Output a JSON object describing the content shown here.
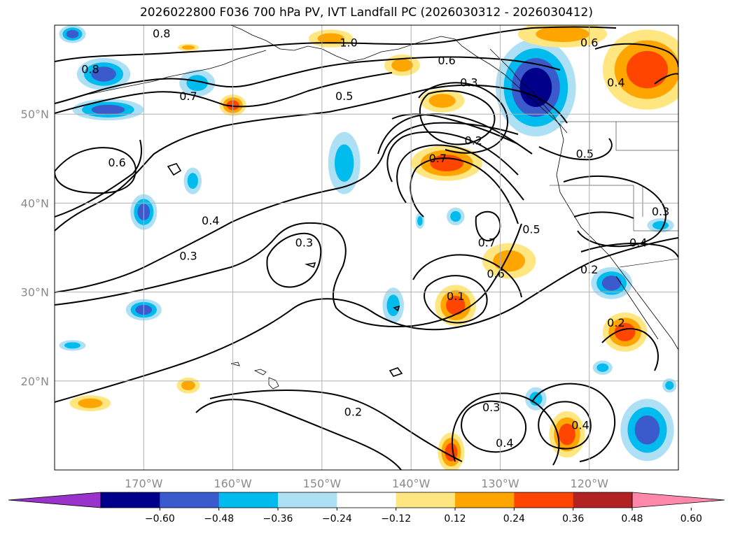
{
  "title": "2026022800 F036 700 hPa PV, IVT Landfall PC (2026030312 - 2026030412)",
  "colors": {
    "contour": "#000000",
    "grid": "#b0b0b0",
    "coast": "#000000",
    "axis_label": "#8a8a8a"
  },
  "axes": {
    "lat_labels": [
      {
        "lat": 50,
        "text": "50°N"
      },
      {
        "lat": 40,
        "text": "40°N"
      },
      {
        "lat": 30,
        "text": "30°N"
      },
      {
        "lat": 20,
        "text": "20°N"
      }
    ],
    "lon_labels": [
      {
        "lon": -170,
        "text": "170°W"
      },
      {
        "lon": -160,
        "text": "160°W"
      },
      {
        "lon": -150,
        "text": "150°W"
      },
      {
        "lon": -140,
        "text": "140°W"
      },
      {
        "lon": -130,
        "text": "130°W"
      },
      {
        "lon": -120,
        "text": "120°W"
      }
    ],
    "lat_range": [
      10,
      60
    ],
    "lon_range": [
      -180,
      -110
    ]
  },
  "contour_labels": [
    {
      "text": "0.8",
      "lon": -168,
      "lat": 59
    },
    {
      "text": "1.0",
      "lon": -147,
      "lat": 58
    },
    {
      "text": "0.6",
      "lon": -136,
      "lat": 56
    },
    {
      "text": "0.6",
      "lon": -120,
      "lat": 58
    },
    {
      "text": "0.8",
      "lon": -176,
      "lat": 55
    },
    {
      "text": "0.7",
      "lon": -165,
      "lat": 52
    },
    {
      "text": "0.5",
      "lon": -147.5,
      "lat": 52
    },
    {
      "text": "0.3",
      "lon": -133.5,
      "lat": 53.5
    },
    {
      "text": "0.2",
      "lon": -133,
      "lat": 47
    },
    {
      "text": "0.4",
      "lon": -117,
      "lat": 53.5
    },
    {
      "text": "0.6",
      "lon": -173,
      "lat": 44.5
    },
    {
      "text": "0.7",
      "lon": -137,
      "lat": 45
    },
    {
      "text": "0.5",
      "lon": -120.5,
      "lat": 45.5
    },
    {
      "text": "0.4",
      "lon": -162.5,
      "lat": 38
    },
    {
      "text": "0.3",
      "lon": -165,
      "lat": 34
    },
    {
      "text": "0.3",
      "lon": -152,
      "lat": 35.5
    },
    {
      "text": "0.5",
      "lon": -126.5,
      "lat": 37
    },
    {
      "text": "0.7",
      "lon": -131.5,
      "lat": 35.5
    },
    {
      "text": "0.6",
      "lon": -130.5,
      "lat": 32
    },
    {
      "text": "0.1",
      "lon": -135,
      "lat": 29.5
    },
    {
      "text": "0.2",
      "lon": -120,
      "lat": 32.5
    },
    {
      "text": "0.4",
      "lon": -114.5,
      "lat": 35.5
    },
    {
      "text": "0.3",
      "lon": -112,
      "lat": 39
    },
    {
      "text": "0.2",
      "lon": -117,
      "lat": 26.5
    },
    {
      "text": "0.2",
      "lon": -146.5,
      "lat": 16.5
    },
    {
      "text": "0.3",
      "lon": -131,
      "lat": 17
    },
    {
      "text": "0.4",
      "lon": -129.5,
      "lat": 13
    },
    {
      "text": "0.4",
      "lon": -121,
      "lat": 15
    }
  ],
  "colorbar": {
    "colors": [
      "#9933cc",
      "#00008b",
      "#3b5bcc",
      "#00bbee",
      "#aee0f5",
      "#ffffff",
      "#ffe680",
      "#ffa500",
      "#ff4500",
      "#b22222",
      "#ff88aa"
    ],
    "ticks": [
      "−0.60",
      "−0.48",
      "−0.36",
      "−0.24",
      "−0.12",
      "0.12",
      "0.24",
      "0.36",
      "0.48",
      "0.60"
    ]
  },
  "shaded_regions": [
    {
      "sign": "neg",
      "level": 2,
      "lon": -164,
      "lat": 53.5,
      "rx": 2,
      "ry": 1.5
    },
    {
      "sign": "neg",
      "level": 3,
      "lon": -174.5,
      "lat": 54.5,
      "rx": 3,
      "ry": 1.8
    },
    {
      "sign": "neg",
      "level": 3,
      "lon": -174,
      "lat": 50.5,
      "rx": 4,
      "ry": 1.2
    },
    {
      "sign": "neg",
      "level": 3,
      "lon": -178,
      "lat": 59,
      "rx": 1.5,
      "ry": 1
    },
    {
      "sign": "neg",
      "level": 2,
      "lon": -147.5,
      "lat": 44.5,
      "rx": 1.8,
      "ry": 3.5
    },
    {
      "sign": "neg",
      "level": 2,
      "lon": -164.5,
      "lat": 42.5,
      "rx": 1,
      "ry": 1.5
    },
    {
      "sign": "neg",
      "level": 3,
      "lon": -170,
      "lat": 39,
      "rx": 1.5,
      "ry": 2
    },
    {
      "sign": "neg",
      "level": 3,
      "lon": -170,
      "lat": 28,
      "rx": 2,
      "ry": 1.2
    },
    {
      "sign": "neg",
      "level": 2,
      "lon": -178,
      "lat": 24,
      "rx": 1.5,
      "ry": 0.6
    },
    {
      "sign": "neg",
      "level": 2,
      "lon": -142,
      "lat": 28.5,
      "rx": 1.2,
      "ry": 2
    },
    {
      "sign": "neg",
      "level": 2,
      "lon": -139,
      "lat": 38,
      "rx": 0.5,
      "ry": 0.9
    },
    {
      "sign": "neg",
      "level": 2,
      "lon": -135,
      "lat": 38.5,
      "rx": 1,
      "ry": 1
    },
    {
      "sign": "neg",
      "level": 4,
      "lon": -126,
      "lat": 53,
      "rx": 4.5,
      "ry": 5.5
    },
    {
      "sign": "neg",
      "level": 3,
      "lon": -117.5,
      "lat": 31,
      "rx": 2.3,
      "ry": 1.8
    },
    {
      "sign": "neg",
      "level": 2,
      "lon": -112,
      "lat": 37.5,
      "rx": 1.5,
      "ry": 0.8
    },
    {
      "sign": "neg",
      "level": 2,
      "lon": -126,
      "lat": 18,
      "rx": 1.2,
      "ry": 1.3
    },
    {
      "sign": "neg",
      "level": 2,
      "lon": -118.5,
      "lat": 21.5,
      "rx": 1.1,
      "ry": 0.8
    },
    {
      "sign": "neg",
      "level": 3,
      "lon": -113.5,
      "lat": 14.5,
      "rx": 3,
      "ry": 3.5
    },
    {
      "sign": "neg",
      "level": 2,
      "lon": -111,
      "lat": 19.5,
      "rx": 0.8,
      "ry": 0.8
    },
    {
      "sign": "pos",
      "level": 3,
      "lon": -136,
      "lat": 44.5,
      "rx": 4,
      "ry": 2
    },
    {
      "sign": "pos",
      "level": 2,
      "lon": -136.5,
      "lat": 51.5,
      "rx": 2.5,
      "ry": 1.3
    },
    {
      "sign": "pos",
      "level": 2,
      "lon": -141,
      "lat": 55.5,
      "rx": 2,
      "ry": 1.2
    },
    {
      "sign": "pos",
      "level": 2,
      "lon": -149,
      "lat": 58.5,
      "rx": 2.5,
      "ry": 1
    },
    {
      "sign": "pos",
      "level": 3,
      "lon": -160,
      "lat": 51,
      "rx": 1.5,
      "ry": 1.2
    },
    {
      "sign": "pos",
      "level": 2,
      "lon": -165,
      "lat": 57.5,
      "rx": 1.2,
      "ry": 0.4
    },
    {
      "sign": "pos",
      "level": 2,
      "lon": -129,
      "lat": 33.5,
      "rx": 3,
      "ry": 2
    },
    {
      "sign": "pos",
      "level": 3,
      "lon": -135,
      "lat": 28.5,
      "rx": 2.3,
      "ry": 2.3
    },
    {
      "sign": "pos",
      "level": 3,
      "lon": -113.5,
      "lat": 55,
      "rx": 5,
      "ry": 4.5
    },
    {
      "sign": "pos",
      "level": 2,
      "lon": -123,
      "lat": 59,
      "rx": 5,
      "ry": 1.5
    },
    {
      "sign": "pos",
      "level": 3,
      "lon": -116,
      "lat": 25.5,
      "rx": 2.5,
      "ry": 2.2
    },
    {
      "sign": "pos",
      "level": 3,
      "lon": -122.5,
      "lat": 14,
      "rx": 2,
      "ry": 2.6
    },
    {
      "sign": "pos",
      "level": 3,
      "lon": -135.5,
      "lat": 12,
      "rx": 1.5,
      "ry": 2.2
    },
    {
      "sign": "pos",
      "level": 2,
      "lon": -176,
      "lat": 17.5,
      "rx": 2.3,
      "ry": 0.9
    },
    {
      "sign": "pos",
      "level": 2,
      "lon": -165,
      "lat": 19.5,
      "rx": 1.3,
      "ry": 0.9
    }
  ]
}
